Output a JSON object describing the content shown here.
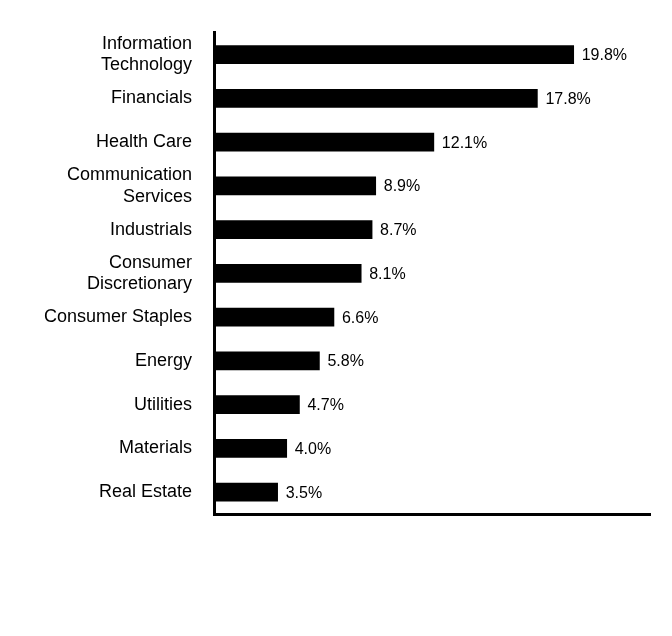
{
  "chart_data": {
    "type": "bar",
    "orientation": "horizontal",
    "categories": [
      [
        "Information",
        "Technology"
      ],
      "Financials",
      "Health Care",
      [
        "Communication",
        "Services"
      ],
      "Industrials",
      [
        "Consumer",
        "Discretionary"
      ],
      "Consumer Staples",
      "Energy",
      "Utilities",
      "Materials",
      "Real Estate"
    ],
    "values": [
      19.8,
      17.8,
      12.1,
      8.9,
      8.7,
      8.1,
      6.6,
      5.8,
      4.7,
      4.0,
      3.5
    ],
    "value_labels": [
      "19.8%",
      "17.8%",
      "12.1%",
      "8.9%",
      "8.7%",
      "8.1%",
      "6.6%",
      "5.8%",
      "4.7%",
      "4.0%",
      "3.5%"
    ],
    "color": "#000000",
    "xlim": [
      0,
      24
    ],
    "grid": false,
    "data_labels": true,
    "tick_labels": "y"
  }
}
